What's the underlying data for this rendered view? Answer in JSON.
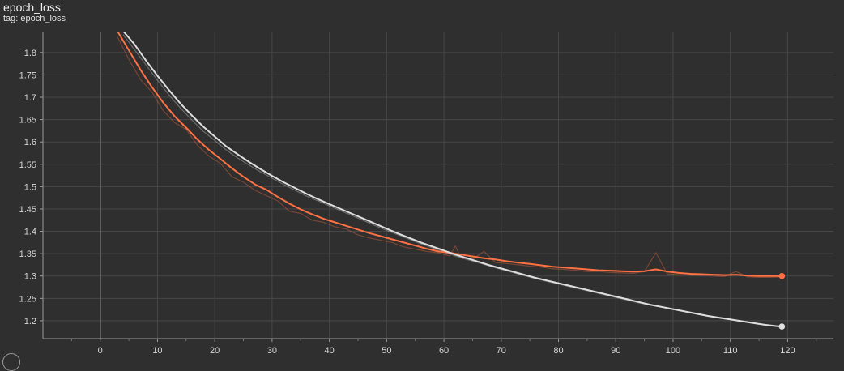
{
  "chart_data": {
    "type": "line",
    "title": "epoch_loss",
    "subtitle": "tag: epoch_loss",
    "xlabel": "",
    "ylabel": "",
    "xlim": [
      -10,
      128
    ],
    "ylim": [
      1.16,
      1.845
    ],
    "x_ticks": [
      0,
      10,
      20,
      30,
      40,
      50,
      60,
      70,
      80,
      90,
      100,
      110,
      120
    ],
    "y_ticks": [
      1.2,
      1.25,
      1.3,
      1.35,
      1.4,
      1.45,
      1.5,
      1.55,
      1.6,
      1.65,
      1.7,
      1.75,
      1.8
    ],
    "grid": true,
    "series": [
      {
        "color": "#ff7043",
        "smoothed": [
          [
            3,
            1.848
          ],
          [
            5,
            1.805
          ],
          [
            7,
            1.762
          ],
          [
            9,
            1.723
          ],
          [
            11,
            1.688
          ],
          [
            13,
            1.657
          ],
          [
            15,
            1.632
          ],
          [
            17,
            1.605
          ],
          [
            19,
            1.582
          ],
          [
            21,
            1.562
          ],
          [
            23,
            1.541
          ],
          [
            25,
            1.522
          ],
          [
            27,
            1.505
          ],
          [
            29,
            1.493
          ],
          [
            31,
            1.477
          ],
          [
            33,
            1.462
          ],
          [
            35,
            1.449
          ],
          [
            37,
            1.438
          ],
          [
            39,
            1.428
          ],
          [
            41,
            1.42
          ],
          [
            43,
            1.412
          ],
          [
            45,
            1.404
          ],
          [
            47,
            1.396
          ],
          [
            49,
            1.389
          ],
          [
            51,
            1.382
          ],
          [
            53,
            1.375
          ],
          [
            55,
            1.368
          ],
          [
            57,
            1.361
          ],
          [
            59,
            1.355
          ],
          [
            61,
            1.352
          ],
          [
            63,
            1.348
          ],
          [
            65,
            1.344
          ],
          [
            67,
            1.34
          ],
          [
            69,
            1.337
          ],
          [
            71,
            1.333
          ],
          [
            73,
            1.33
          ],
          [
            75,
            1.327
          ],
          [
            77,
            1.324
          ],
          [
            79,
            1.321
          ],
          [
            81,
            1.319
          ],
          [
            83,
            1.317
          ],
          [
            85,
            1.315
          ],
          [
            87,
            1.313
          ],
          [
            89,
            1.312
          ],
          [
            91,
            1.311
          ],
          [
            93,
            1.31
          ],
          [
            95,
            1.311
          ],
          [
            97,
            1.315
          ],
          [
            99,
            1.31
          ],
          [
            101,
            1.307
          ],
          [
            103,
            1.305
          ],
          [
            105,
            1.304
          ],
          [
            107,
            1.303
          ],
          [
            109,
            1.302
          ],
          [
            111,
            1.303
          ],
          [
            113,
            1.301
          ],
          [
            115,
            1.3
          ],
          [
            117,
            1.3
          ],
          [
            119,
            1.3
          ]
        ],
        "raw": [
          [
            3,
            1.835
          ],
          [
            5,
            1.785
          ],
          [
            7,
            1.74
          ],
          [
            9,
            1.712
          ],
          [
            11,
            1.67
          ],
          [
            13,
            1.643
          ],
          [
            15,
            1.628
          ],
          [
            17,
            1.592
          ],
          [
            19,
            1.568
          ],
          [
            21,
            1.552
          ],
          [
            23,
            1.522
          ],
          [
            25,
            1.51
          ],
          [
            27,
            1.492
          ],
          [
            29,
            1.48
          ],
          [
            31,
            1.468
          ],
          [
            33,
            1.445
          ],
          [
            35,
            1.44
          ],
          [
            37,
            1.425
          ],
          [
            39,
            1.42
          ],
          [
            41,
            1.41
          ],
          [
            43,
            1.405
          ],
          [
            45,
            1.392
          ],
          [
            47,
            1.385
          ],
          [
            49,
            1.38
          ],
          [
            51,
            1.375
          ],
          [
            53,
            1.365
          ],
          [
            55,
            1.36
          ],
          [
            57,
            1.355
          ],
          [
            59,
            1.352
          ],
          [
            61,
            1.345
          ],
          [
            62,
            1.367
          ],
          [
            63,
            1.34
          ],
          [
            65,
            1.338
          ],
          [
            67,
            1.355
          ],
          [
            69,
            1.33
          ],
          [
            71,
            1.328
          ],
          [
            73,
            1.325
          ],
          [
            75,
            1.322
          ],
          [
            77,
            1.32
          ],
          [
            79,
            1.316
          ],
          [
            81,
            1.315
          ],
          [
            83,
            1.313
          ],
          [
            85,
            1.31
          ],
          [
            87,
            1.31
          ],
          [
            89,
            1.308
          ],
          [
            91,
            1.307
          ],
          [
            93,
            1.306
          ],
          [
            95,
            1.31
          ],
          [
            97,
            1.352
          ],
          [
            99,
            1.305
          ],
          [
            101,
            1.303
          ],
          [
            103,
            1.302
          ],
          [
            105,
            1.301
          ],
          [
            107,
            1.3
          ],
          [
            109,
            1.299
          ],
          [
            111,
            1.31
          ],
          [
            113,
            1.298
          ],
          [
            115,
            1.297
          ],
          [
            117,
            1.297
          ],
          [
            119,
            1.298
          ]
        ]
      },
      {
        "color": "#dedede",
        "smoothed": [
          [
            4,
            1.848
          ],
          [
            6,
            1.818
          ],
          [
            8,
            1.782
          ],
          [
            10,
            1.748
          ],
          [
            12,
            1.716
          ],
          [
            14,
            1.686
          ],
          [
            16,
            1.659
          ],
          [
            18,
            1.634
          ],
          [
            20,
            1.612
          ],
          [
            22,
            1.59
          ],
          [
            24,
            1.572
          ],
          [
            26,
            1.555
          ],
          [
            28,
            1.539
          ],
          [
            30,
            1.524
          ],
          [
            32,
            1.51
          ],
          [
            34,
            1.497
          ],
          [
            36,
            1.484
          ],
          [
            38,
            1.472
          ],
          [
            40,
            1.461
          ],
          [
            42,
            1.45
          ],
          [
            44,
            1.439
          ],
          [
            46,
            1.428
          ],
          [
            48,
            1.417
          ],
          [
            50,
            1.406
          ],
          [
            52,
            1.395
          ],
          [
            54,
            1.385
          ],
          [
            56,
            1.375
          ],
          [
            58,
            1.366
          ],
          [
            60,
            1.357
          ],
          [
            62,
            1.348
          ],
          [
            64,
            1.34
          ],
          [
            66,
            1.332
          ],
          [
            68,
            1.324
          ],
          [
            70,
            1.317
          ],
          [
            72,
            1.31
          ],
          [
            74,
            1.303
          ],
          [
            76,
            1.296
          ],
          [
            78,
            1.29
          ],
          [
            80,
            1.284
          ],
          [
            82,
            1.278
          ],
          [
            84,
            1.272
          ],
          [
            86,
            1.266
          ],
          [
            88,
            1.26
          ],
          [
            90,
            1.254
          ],
          [
            92,
            1.248
          ],
          [
            94,
            1.242
          ],
          [
            96,
            1.236
          ],
          [
            98,
            1.231
          ],
          [
            100,
            1.226
          ],
          [
            102,
            1.221
          ],
          [
            104,
            1.216
          ],
          [
            106,
            1.211
          ],
          [
            108,
            1.207
          ],
          [
            110,
            1.203
          ],
          [
            112,
            1.199
          ],
          [
            114,
            1.195
          ],
          [
            116,
            1.191
          ],
          [
            118,
            1.188
          ],
          [
            119,
            1.187
          ]
        ],
        "raw": [
          [
            4,
            1.84
          ],
          [
            6,
            1.806
          ],
          [
            8,
            1.772
          ],
          [
            10,
            1.738
          ],
          [
            12,
            1.705
          ],
          [
            14,
            1.676
          ],
          [
            16,
            1.649
          ],
          [
            18,
            1.624
          ],
          [
            20,
            1.603
          ],
          [
            22,
            1.582
          ],
          [
            24,
            1.564
          ],
          [
            26,
            1.548
          ],
          [
            28,
            1.533
          ],
          [
            30,
            1.519
          ],
          [
            32,
            1.505
          ],
          [
            34,
            1.492
          ],
          [
            36,
            1.479
          ],
          [
            38,
            1.468
          ],
          [
            40,
            1.457
          ],
          [
            42,
            1.446
          ],
          [
            44,
            1.435
          ],
          [
            46,
            1.424
          ],
          [
            48,
            1.413
          ],
          [
            50,
            1.402
          ],
          [
            52,
            1.392
          ],
          [
            54,
            1.382
          ],
          [
            56,
            1.372
          ],
          [
            58,
            1.363
          ],
          [
            60,
            1.354
          ],
          [
            62,
            1.345
          ],
          [
            64,
            1.337
          ],
          [
            66,
            1.33
          ],
          [
            68,
            1.322
          ],
          [
            70,
            1.315
          ],
          [
            72,
            1.308
          ],
          [
            74,
            1.301
          ],
          [
            76,
            1.294
          ],
          [
            78,
            1.288
          ],
          [
            80,
            1.282
          ],
          [
            82,
            1.276
          ],
          [
            84,
            1.27
          ],
          [
            86,
            1.264
          ],
          [
            88,
            1.258
          ],
          [
            90,
            1.252
          ],
          [
            92,
            1.246
          ],
          [
            94,
            1.24
          ],
          [
            96,
            1.235
          ],
          [
            98,
            1.23
          ],
          [
            100,
            1.225
          ],
          [
            102,
            1.22
          ],
          [
            104,
            1.215
          ],
          [
            106,
            1.21
          ],
          [
            108,
            1.206
          ],
          [
            110,
            1.202
          ],
          [
            112,
            1.198
          ],
          [
            114,
            1.194
          ],
          [
            116,
            1.19
          ],
          [
            118,
            1.187
          ],
          [
            119,
            1.186
          ]
        ]
      }
    ]
  }
}
